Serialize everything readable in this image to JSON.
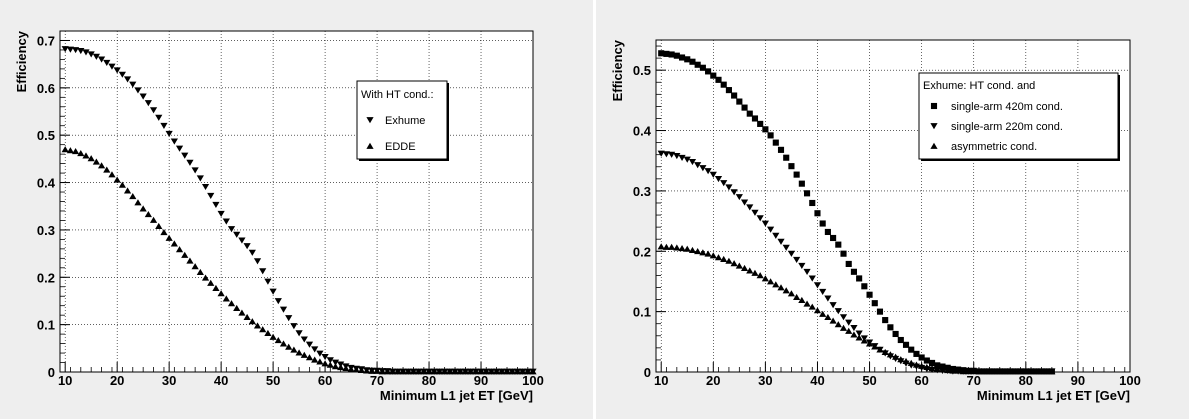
{
  "chart_data": [
    {
      "type": "scatter",
      "title": "",
      "xlabel": "Minimum L1 jet ET [GeV]",
      "ylabel": "Efficiency",
      "xlim": [
        9,
        100
      ],
      "ylim": [
        0,
        0.72
      ],
      "x_ticks": [
        "10",
        "20",
        "30",
        "40",
        "50",
        "60",
        "70",
        "80",
        "90",
        "100"
      ],
      "y_ticks": [
        "0",
        "0.1",
        "0.2",
        "0.3",
        "0.4",
        "0.5",
        "0.6",
        "0.7"
      ],
      "grid": true,
      "legend_title": "With HT cond.:",
      "legend_placement": "top-right",
      "series": [
        {
          "name": "Exhume",
          "marker": "triangle-down",
          "x": [
            10,
            11,
            12,
            13,
            14,
            15,
            16,
            17,
            18,
            19,
            20,
            21,
            22,
            23,
            24,
            25,
            26,
            27,
            28,
            29,
            30,
            31,
            32,
            33,
            34,
            35,
            36,
            37,
            38,
            39,
            40,
            41,
            42,
            43,
            44,
            45,
            46,
            47,
            48,
            49,
            50,
            51,
            52,
            53,
            54,
            55,
            56,
            57,
            58,
            59,
            60,
            61,
            62,
            63,
            64,
            65,
            66,
            67,
            68,
            69,
            70,
            71,
            72,
            73,
            74,
            75,
            76,
            77,
            78,
            79,
            80,
            81,
            82,
            83,
            84,
            85,
            86,
            87,
            88,
            89,
            90,
            91,
            92,
            93,
            94,
            95,
            96,
            97,
            98,
            99,
            100
          ],
          "values": [
            0.682,
            0.681,
            0.68,
            0.678,
            0.675,
            0.671,
            0.666,
            0.66,
            0.653,
            0.645,
            0.637,
            0.628,
            0.618,
            0.607,
            0.595,
            0.582,
            0.568,
            0.553,
            0.537,
            0.52,
            0.503,
            0.487,
            0.472,
            0.457,
            0.442,
            0.426,
            0.409,
            0.391,
            0.372,
            0.353,
            0.334,
            0.318,
            0.302,
            0.29,
            0.278,
            0.266,
            0.252,
            0.234,
            0.213,
            0.191,
            0.17,
            0.15,
            0.132,
            0.114,
            0.097,
            0.082,
            0.069,
            0.058,
            0.048,
            0.039,
            0.032,
            0.025,
            0.02,
            0.016,
            0.012,
            0.009,
            0.007,
            0.006,
            0.004,
            0.003,
            0.003,
            0.002,
            0.002,
            0.001,
            0.001,
            0.001,
            0.001,
            0.001,
            0.001,
            0.001,
            0.001,
            0.001,
            0.001,
            0.001,
            0.001,
            0.001,
            0.001,
            0.001,
            0.001,
            0.001,
            0.001,
            0.001,
            0.001,
            0.001,
            0.001,
            0.001,
            0.001,
            0.001,
            0.001,
            0.001,
            0.001
          ]
        },
        {
          "name": "EDDE",
          "marker": "triangle-up",
          "x": [
            10,
            11,
            12,
            13,
            14,
            15,
            16,
            17,
            18,
            19,
            20,
            21,
            22,
            23,
            24,
            25,
            26,
            27,
            28,
            29,
            30,
            31,
            32,
            33,
            34,
            35,
            36,
            37,
            38,
            39,
            40,
            41,
            42,
            43,
            44,
            45,
            46,
            47,
            48,
            49,
            50,
            51,
            52,
            53,
            54,
            55,
            56,
            57,
            58,
            59,
            60,
            61,
            62,
            63,
            64,
            65,
            66,
            67,
            68,
            69,
            70,
            71,
            72,
            73,
            74,
            75,
            76,
            77,
            78,
            79,
            80,
            81,
            82,
            83,
            84,
            85,
            86,
            87,
            88,
            89,
            90,
            91,
            92,
            93,
            94,
            95,
            96,
            97,
            98,
            99,
            100
          ],
          "values": [
            0.47,
            0.468,
            0.466,
            0.462,
            0.457,
            0.451,
            0.444,
            0.436,
            0.427,
            0.417,
            0.406,
            0.395,
            0.383,
            0.371,
            0.358,
            0.345,
            0.333,
            0.321,
            0.308,
            0.295,
            0.283,
            0.271,
            0.259,
            0.247,
            0.235,
            0.223,
            0.211,
            0.199,
            0.188,
            0.177,
            0.166,
            0.155,
            0.145,
            0.135,
            0.125,
            0.116,
            0.107,
            0.098,
            0.09,
            0.082,
            0.074,
            0.067,
            0.06,
            0.053,
            0.047,
            0.041,
            0.036,
            0.031,
            0.026,
            0.022,
            0.018,
            0.015,
            0.012,
            0.01,
            0.008,
            0.006,
            0.005,
            0.004,
            0.003,
            0.002,
            0.002,
            0.001,
            0.001,
            0.001,
            0.001,
            0.001,
            0.001,
            0.001,
            0.001,
            0.001,
            0.001,
            0.001,
            0.001,
            0.001,
            0.001,
            0.001,
            0.001,
            0.001,
            0.001,
            0.001,
            0.001,
            0.001,
            0.001,
            0.001,
            0.001,
            0.001,
            0.001,
            0.001,
            0.001,
            0.001,
            0.001
          ]
        }
      ]
    },
    {
      "type": "scatter",
      "title": "",
      "xlabel": "Minimum L1 jet ET [GeV]",
      "ylabel": "Efficiency",
      "xlim": [
        9,
        100
      ],
      "ylim": [
        0,
        0.55
      ],
      "x_ticks": [
        "10",
        "20",
        "30",
        "40",
        "50",
        "60",
        "70",
        "80",
        "90",
        "100"
      ],
      "y_ticks": [
        "0",
        "0.1",
        "0.2",
        "0.3",
        "0.4",
        "0.5"
      ],
      "grid": true,
      "legend_title": "Exhume: HT cond. and",
      "legend_placement": "top-right",
      "series": [
        {
          "name": "single-arm 420m cond.",
          "marker": "square",
          "x": [
            10,
            11,
            12,
            13,
            14,
            15,
            16,
            17,
            18,
            19,
            20,
            21,
            22,
            23,
            24,
            25,
            26,
            27,
            28,
            29,
            30,
            31,
            32,
            33,
            34,
            35,
            36,
            37,
            38,
            39,
            40,
            41,
            42,
            43,
            44,
            45,
            46,
            47,
            48,
            49,
            50,
            51,
            52,
            53,
            54,
            55,
            56,
            57,
            58,
            59,
            60,
            61,
            62,
            63,
            64,
            65,
            66,
            67,
            68,
            69,
            70,
            71,
            72,
            73,
            74,
            75,
            76,
            77,
            78,
            79,
            80,
            81,
            82,
            83,
            84,
            85
          ],
          "values": [
            0.528,
            0.527,
            0.526,
            0.524,
            0.521,
            0.518,
            0.514,
            0.509,
            0.504,
            0.498,
            0.491,
            0.484,
            0.476,
            0.467,
            0.458,
            0.448,
            0.438,
            0.428,
            0.42,
            0.411,
            0.402,
            0.392,
            0.38,
            0.368,
            0.355,
            0.341,
            0.327,
            0.312,
            0.296,
            0.28,
            0.263,
            0.246,
            0.232,
            0.222,
            0.211,
            0.196,
            0.179,
            0.166,
            0.155,
            0.142,
            0.128,
            0.114,
            0.1,
            0.086,
            0.074,
            0.063,
            0.053,
            0.045,
            0.037,
            0.03,
            0.024,
            0.019,
            0.015,
            0.011,
            0.009,
            0.007,
            0.005,
            0.004,
            0.003,
            0.002,
            0.002,
            0.001,
            0.001,
            0.001,
            0.001,
            0.001,
            0.001,
            0.001,
            0.001,
            0.001,
            0.001,
            0.001,
            0.001,
            0.001,
            0.001,
            0.001
          ]
        },
        {
          "name": "single-arm 220m cond.",
          "marker": "triangle-down",
          "x": [
            10,
            11,
            12,
            13,
            14,
            15,
            16,
            17,
            18,
            19,
            20,
            21,
            22,
            23,
            24,
            25,
            26,
            27,
            28,
            29,
            30,
            31,
            32,
            33,
            34,
            35,
            36,
            37,
            38,
            39,
            40,
            41,
            42,
            43,
            44,
            45,
            46,
            47,
            48,
            49,
            50,
            51,
            52,
            53,
            54,
            55,
            56,
            57,
            58,
            59,
            60,
            61,
            62,
            63,
            64,
            65,
            66,
            67,
            68,
            69,
            70,
            71,
            72,
            73,
            74,
            75,
            76,
            77,
            78,
            79,
            80,
            81,
            82,
            83,
            84,
            85
          ],
          "values": [
            0.362,
            0.361,
            0.36,
            0.358,
            0.355,
            0.352,
            0.348,
            0.343,
            0.338,
            0.333,
            0.327,
            0.32,
            0.313,
            0.306,
            0.298,
            0.29,
            0.281,
            0.273,
            0.264,
            0.255,
            0.246,
            0.236,
            0.226,
            0.216,
            0.206,
            0.196,
            0.186,
            0.176,
            0.166,
            0.155,
            0.144,
            0.133,
            0.122,
            0.111,
            0.101,
            0.091,
            0.082,
            0.073,
            0.064,
            0.056,
            0.049,
            0.043,
            0.037,
            0.031,
            0.026,
            0.022,
            0.018,
            0.014,
            0.011,
            0.009,
            0.007,
            0.005,
            0.004,
            0.003,
            0.002,
            0.002,
            0.001,
            0.001,
            0.001,
            0.001,
            0.001,
            0.001,
            0.001,
            0.001,
            0.001,
            0.001,
            0.001,
            0.001,
            0.001,
            0.001,
            0.001,
            0.001,
            0.001,
            0.001,
            0.001,
            0.001
          ]
        },
        {
          "name": "asymmetric cond.",
          "marker": "triangle-up",
          "x": [
            10,
            11,
            12,
            13,
            14,
            15,
            16,
            17,
            18,
            19,
            20,
            21,
            22,
            23,
            24,
            25,
            26,
            27,
            28,
            29,
            30,
            31,
            32,
            33,
            34,
            35,
            36,
            37,
            38,
            39,
            40,
            41,
            42,
            43,
            44,
            45,
            46,
            47,
            48,
            49,
            50,
            51,
            52,
            53,
            54,
            55,
            56,
            57,
            58,
            59,
            60,
            61,
            62,
            63,
            64,
            65,
            66,
            67,
            68,
            69,
            70,
            71,
            72,
            73,
            74,
            75,
            76,
            77,
            78,
            79,
            80,
            81,
            82,
            83,
            84,
            85
          ],
          "values": [
            0.208,
            0.207,
            0.207,
            0.206,
            0.205,
            0.204,
            0.202,
            0.2,
            0.198,
            0.196,
            0.193,
            0.19,
            0.187,
            0.184,
            0.18,
            0.176,
            0.172,
            0.168,
            0.164,
            0.16,
            0.155,
            0.15,
            0.145,
            0.14,
            0.135,
            0.13,
            0.124,
            0.119,
            0.113,
            0.108,
            0.102,
            0.096,
            0.091,
            0.085,
            0.079,
            0.073,
            0.068,
            0.062,
            0.057,
            0.052,
            0.047,
            0.042,
            0.037,
            0.033,
            0.029,
            0.025,
            0.021,
            0.018,
            0.015,
            0.012,
            0.01,
            0.008,
            0.006,
            0.005,
            0.004,
            0.003,
            0.002,
            0.002,
            0.001,
            0.001,
            0.001,
            0.001,
            0.001,
            0.001,
            0.001,
            0.001,
            0.001,
            0.001,
            0.001,
            0.001,
            0.001,
            0.001,
            0.001,
            0.001,
            0.001,
            0.001
          ]
        }
      ]
    }
  ]
}
